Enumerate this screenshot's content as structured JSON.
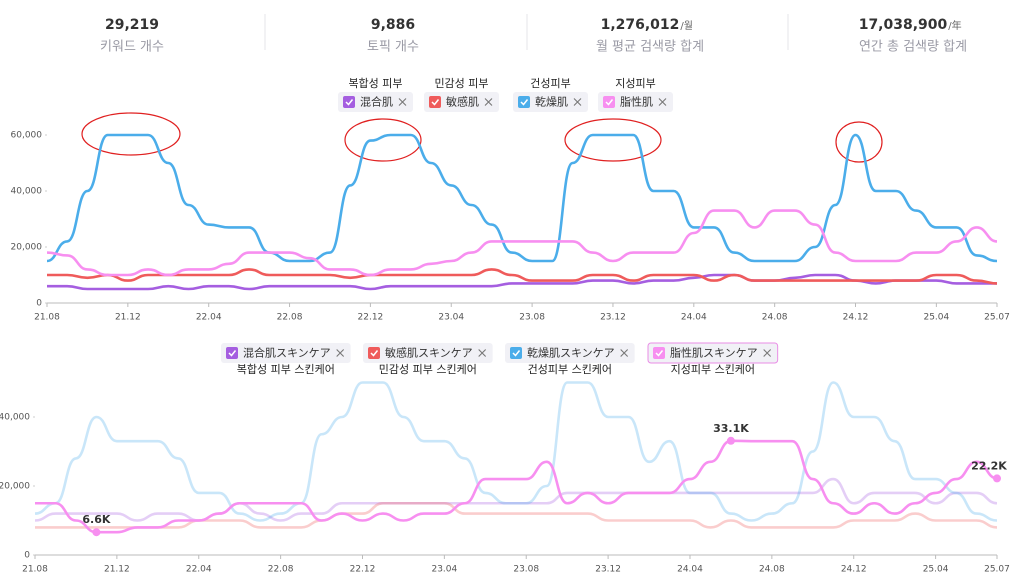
{
  "stats": [
    {
      "value": "29,219",
      "label": "키워드 개수"
    },
    {
      "value": "9,886",
      "label": "토픽 개수"
    },
    {
      "value": "1,276,012",
      "unit": "/월",
      "label": "월 평균 검색량 합계"
    },
    {
      "value": "17,038,900",
      "unit": "/年",
      "label": "연간 총 검색량 합계"
    }
  ],
  "chart_data": [
    {
      "type": "line",
      "categories": [
        "21.08",
        null,
        null,
        null,
        "21.12",
        null,
        null,
        null,
        "22.04",
        null,
        null,
        null,
        "22.08",
        null,
        null,
        null,
        "22.12",
        null,
        null,
        null,
        "23.04",
        null,
        null,
        null,
        "23.08",
        null,
        null,
        null,
        "23.12",
        null,
        null,
        null,
        "24.04",
        null,
        null,
        null,
        "24.08",
        null,
        null,
        null,
        "24.12",
        null,
        null,
        null,
        "25.04",
        null,
        null,
        "25.07"
      ],
      "ylim": [
        0,
        60000
      ],
      "yticks": [
        0,
        {
          "value": 20000,
          "label": "20,000"
        },
        {
          "value": 40000,
          "label": "40,000"
        },
        {
          "value": 60000,
          "label": "60,000"
        }
      ],
      "grid": false,
      "series": [
        {
          "name": "混合肌",
          "translation": "복합성 피부",
          "color": "#a55ee0",
          "values": [
            6000,
            6000,
            5000,
            5000,
            5000,
            5000,
            6000,
            5000,
            6000,
            6000,
            5000,
            6000,
            6000,
            6000,
            6000,
            6000,
            5000,
            6000,
            6000,
            6000,
            6000,
            6000,
            6000,
            7000,
            7000,
            7000,
            7000,
            8000,
            8000,
            7000,
            8000,
            8000,
            9000,
            10000,
            10000,
            8000,
            8000,
            9000,
            10000,
            10000,
            8000,
            7000,
            8000,
            8000,
            8000,
            7000,
            7000,
            7000
          ]
        },
        {
          "name": "敏感肌",
          "translation": "민감성 피부",
          "color": "#ef5b5b",
          "values": [
            10000,
            10000,
            9000,
            10000,
            8000,
            10000,
            10000,
            10000,
            10000,
            10000,
            12000,
            10000,
            10000,
            10000,
            10000,
            9000,
            10000,
            10000,
            10000,
            10000,
            10000,
            10000,
            12000,
            10000,
            8000,
            8000,
            8000,
            10000,
            10000,
            8000,
            10000,
            10000,
            10000,
            8000,
            10000,
            8000,
            8000,
            8000,
            8000,
            8000,
            8000,
            8000,
            8000,
            8000,
            10000,
            10000,
            8000,
            7000
          ]
        },
        {
          "name": "乾燥肌",
          "translation": "건성피부",
          "color": "#4badea",
          "values": [
            15000,
            22000,
            40000,
            60000,
            60000,
            60000,
            50000,
            35000,
            28000,
            27000,
            27000,
            18000,
            15000,
            15000,
            18000,
            42000,
            58000,
            60000,
            60000,
            50000,
            42000,
            35000,
            28000,
            18000,
            15000,
            15000,
            50000,
            60000,
            60000,
            60000,
            40000,
            40000,
            27000,
            27000,
            18000,
            15000,
            15000,
            15000,
            20000,
            35000,
            60000,
            40000,
            40000,
            33000,
            27000,
            27000,
            17000,
            15000
          ]
        },
        {
          "name": "脂性肌",
          "translation": "지성피부",
          "color": "#f78ff0",
          "values": [
            18000,
            17000,
            12000,
            10000,
            10000,
            12000,
            10000,
            12000,
            12000,
            14000,
            18000,
            18000,
            18000,
            16000,
            12000,
            12000,
            10000,
            12000,
            12000,
            14000,
            15000,
            18000,
            22000,
            22000,
            22000,
            22000,
            22000,
            18000,
            15000,
            18000,
            18000,
            18000,
            25000,
            33000,
            33000,
            27000,
            33000,
            33000,
            28000,
            18000,
            15000,
            15000,
            15000,
            18000,
            18000,
            22000,
            27000,
            22000
          ]
        }
      ]
    },
    {
      "type": "line",
      "categories": [
        "21.08",
        null,
        null,
        null,
        "21.12",
        null,
        null,
        null,
        "22.04",
        null,
        null,
        null,
        "22.08",
        null,
        null,
        null,
        "22.12",
        null,
        null,
        null,
        "23.04",
        null,
        null,
        null,
        "23.08",
        null,
        null,
        null,
        "23.12",
        null,
        null,
        null,
        "24.04",
        null,
        null,
        null,
        "24.08",
        null,
        null,
        null,
        "24.12",
        null,
        null,
        null,
        "25.04",
        null,
        null,
        "25.07"
      ],
      "ylim": [
        0,
        50000
      ],
      "yticks": [
        0,
        {
          "value": 20000,
          "label": "20,000"
        },
        {
          "value": 40000,
          "label": "40,000"
        }
      ],
      "grid": false,
      "series": [
        {
          "name": "混合肌スキンケア",
          "translation": "복합성 피부 스킨케어",
          "color": "#a55ee0",
          "faded": true,
          "values": [
            10000,
            12000,
            12000,
            12000,
            12000,
            10000,
            12000,
            12000,
            10000,
            12000,
            15000,
            12000,
            10000,
            12000,
            12000,
            15000,
            15000,
            15000,
            15000,
            15000,
            15000,
            15000,
            15000,
            15000,
            15000,
            15000,
            18000,
            18000,
            18000,
            18000,
            18000,
            18000,
            18000,
            18000,
            18000,
            18000,
            18000,
            18000,
            18000,
            22000,
            15000,
            18000,
            18000,
            18000,
            15000,
            18000,
            18000,
            15000
          ]
        },
        {
          "name": "敏感肌スキンケア",
          "translation": "민감성 피부 스킨케어",
          "color": "#ef5b5b",
          "faded": true,
          "values": [
            8000,
            8000,
            8000,
            8000,
            8000,
            8000,
            8000,
            8000,
            10000,
            10000,
            10000,
            8000,
            8000,
            8000,
            10000,
            12000,
            12000,
            15000,
            15000,
            15000,
            15000,
            12000,
            12000,
            12000,
            12000,
            12000,
            12000,
            12000,
            10000,
            10000,
            10000,
            10000,
            10000,
            8000,
            10000,
            8000,
            8000,
            8000,
            8000,
            8000,
            10000,
            10000,
            10000,
            12000,
            10000,
            10000,
            10000,
            8000
          ]
        },
        {
          "name": "乾燥肌スキンケア",
          "translation": "건성피부 스킨케어",
          "color": "#4badea",
          "faded": true,
          "values": [
            12000,
            15000,
            28000,
            40000,
            33000,
            33000,
            33000,
            28000,
            18000,
            18000,
            12000,
            10000,
            12000,
            15000,
            35000,
            40000,
            50000,
            50000,
            40000,
            33000,
            33000,
            28000,
            18000,
            15000,
            15000,
            20000,
            50000,
            50000,
            40000,
            40000,
            27000,
            33000,
            18000,
            18000,
            12000,
            10000,
            12000,
            15000,
            30000,
            50000,
            40000,
            40000,
            33000,
            22000,
            22000,
            18000,
            12000,
            10000
          ]
        },
        {
          "name": "脂性肌スキンケア",
          "translation": "지성피부 스킨케어",
          "color": "#f78ff0",
          "faded": false,
          "values": [
            15000,
            15000,
            10000,
            6600,
            6600,
            8000,
            8000,
            10000,
            10000,
            12000,
            15000,
            15000,
            15000,
            15000,
            10000,
            12000,
            10000,
            12000,
            10000,
            12000,
            12000,
            15000,
            22000,
            22000,
            22000,
            27000,
            15000,
            18000,
            15000,
            18000,
            18000,
            18000,
            22000,
            27000,
            33100,
            33000,
            33000,
            33000,
            22000,
            15000,
            12000,
            15000,
            12000,
            15000,
            18000,
            22000,
            27000,
            22200
          ],
          "value_labels": [
            null,
            null,
            null,
            "6.6K",
            null,
            null,
            null,
            null,
            null,
            null,
            null,
            null,
            null,
            null,
            null,
            null,
            null,
            null,
            null,
            null,
            null,
            null,
            null,
            null,
            null,
            null,
            null,
            null,
            null,
            null,
            null,
            null,
            null,
            null,
            "33.1K",
            null,
            null,
            null,
            null,
            null,
            null,
            null,
            null,
            null,
            null,
            null,
            null,
            "22.2K"
          ]
        }
      ]
    }
  ]
}
